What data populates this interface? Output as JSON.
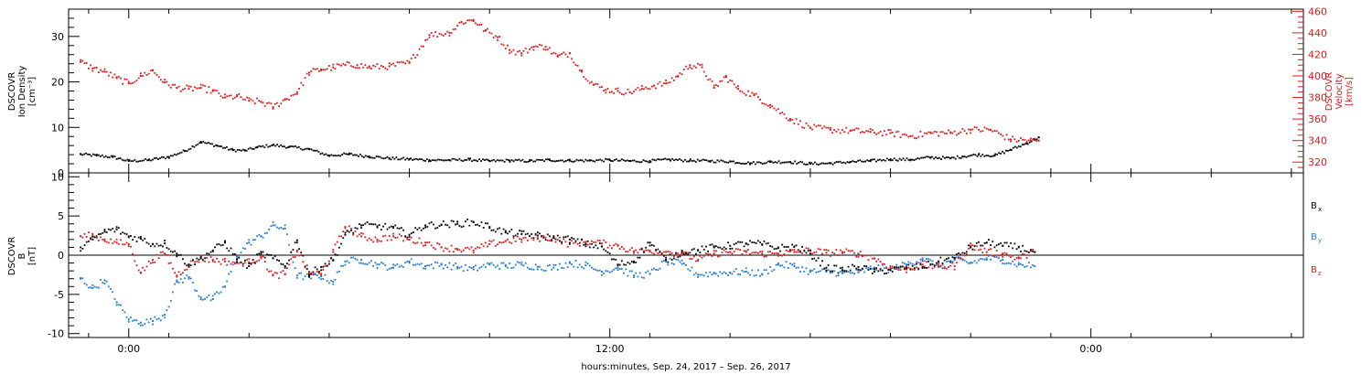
{
  "chart_data": [
    {
      "type": "scatter",
      "panel": "top",
      "ylabel_left": [
        "DSCOVR",
        "Ion Density",
        "[cm⁻³]"
      ],
      "ylabel_right": [
        "DSCOVR",
        "Velocity",
        "[km/s]"
      ],
      "ylim_left": [
        0,
        36
      ],
      "ylim_right": [
        310,
        462
      ],
      "left_ticks": [
        0,
        10,
        20,
        30
      ],
      "right_ticks": [
        320,
        340,
        360,
        380,
        400,
        420,
        440,
        460
      ],
      "series": [
        {
          "axis": "left",
          "color": "#000000",
          "x": [
            -1.2,
            -0.8,
            -0.4,
            0.0,
            0.5,
            1.0,
            1.4,
            1.8,
            2.2,
            2.6,
            2.9,
            3.2,
            3.6,
            4.0,
            4.5,
            5.0,
            5.5,
            6.0,
            6.5,
            7.0,
            7.5,
            8.0,
            8.5,
            9.0,
            9.5,
            10.0,
            10.5,
            11.0,
            11.5,
            12.0,
            12.5,
            13.0,
            13.5,
            14.0,
            14.5,
            15.0,
            15.5,
            16.0,
            16.5,
            17.0,
            17.5,
            18.0,
            18.5,
            19.0,
            19.5,
            20.0,
            20.5,
            20.8,
            21.2,
            21.6,
            22.0,
            22.4,
            22.7
          ],
          "y": [
            4.1,
            3.8,
            3.5,
            2.6,
            2.8,
            3.5,
            4.8,
            6.8,
            6.0,
            5.0,
            4.9,
            5.6,
            6.1,
            5.7,
            5.2,
            3.8,
            4.1,
            3.6,
            3.2,
            3.0,
            2.8,
            2.8,
            2.9,
            2.6,
            2.7,
            2.6,
            2.8,
            2.7,
            2.7,
            2.8,
            2.6,
            2.6,
            2.9,
            2.7,
            2.6,
            2.5,
            2.1,
            2.4,
            2.4,
            2.0,
            2.1,
            2.4,
            2.6,
            3.0,
            2.9,
            3.4,
            3.2,
            3.6,
            4.0,
            3.8,
            5.1,
            6.5,
            7.8
          ]
        },
        {
          "axis": "right",
          "color": "#dd1a1a",
          "x": [
            -1.2,
            -0.9,
            -0.6,
            -0.3,
            0.0,
            0.3,
            0.6,
            0.9,
            1.2,
            1.5,
            1.8,
            2.1,
            2.4,
            2.7,
            3.0,
            3.3,
            3.6,
            3.9,
            4.2,
            4.5,
            4.8,
            5.1,
            5.4,
            5.7,
            6.0,
            6.5,
            7.0,
            7.5,
            8.0,
            8.3,
            8.6,
            8.9,
            9.2,
            9.5,
            9.8,
            10.1,
            10.4,
            10.7,
            11.0,
            11.3,
            11.6,
            11.9,
            12.2,
            12.5,
            12.8,
            13.1,
            13.4,
            13.7,
            14.0,
            14.3,
            14.6,
            14.9,
            15.2,
            15.6,
            16.0,
            16.5,
            17.0,
            17.5,
            18.0,
            18.5,
            19.0,
            19.5,
            20.0,
            20.5,
            21.0,
            21.5,
            22.0,
            22.5,
            22.7
          ],
          "y": [
            413,
            407,
            404,
            398,
            393,
            400,
            405,
            394,
            389,
            388,
            389,
            386,
            380,
            381,
            377,
            376,
            371,
            378,
            385,
            403,
            406,
            408,
            410,
            410,
            408,
            409,
            412,
            438,
            440,
            450,
            452,
            442,
            436,
            424,
            421,
            427,
            427,
            418,
            421,
            404,
            392,
            387,
            386,
            385,
            388,
            391,
            393,
            400,
            410,
            408,
            389,
            399,
            388,
            382,
            373,
            360,
            352,
            350,
            349,
            348,
            347,
            344,
            347,
            347,
            350,
            350,
            341,
            340,
            340
          ]
        }
      ]
    },
    {
      "type": "scatter",
      "panel": "bottom",
      "ylabel_left": [
        "DSCOVR",
        "B",
        "[nT]"
      ],
      "ylim": [
        -10.5,
        10.5
      ],
      "ticks": [
        -10,
        -5,
        0,
        5,
        10
      ],
      "zero_line": true,
      "legend": {
        "placement": "right",
        "entries": [
          {
            "text": "B",
            "sub": "x",
            "color": "#000000"
          },
          {
            "text": "B",
            "sub": "y",
            "color": "#1f7bd6"
          },
          {
            "text": "B",
            "sub": "z",
            "color": "#dd1a1a"
          }
        ]
      },
      "series": [
        {
          "color": "#000000",
          "x": [
            -1.2,
            -0.9,
            -0.6,
            -0.3,
            0.0,
            0.3,
            0.6,
            0.9,
            1.2,
            1.5,
            1.8,
            2.1,
            2.4,
            2.7,
            3.0,
            3.3,
            3.6,
            3.9,
            4.2,
            4.5,
            4.8,
            5.1,
            5.4,
            5.8,
            6.2,
            6.6,
            7.0,
            7.4,
            7.8,
            8.2,
            8.6,
            9.0,
            9.4,
            9.8,
            10.2,
            10.6,
            11.0,
            11.4,
            11.8,
            12.2,
            12.6,
            13.0,
            13.4,
            13.8,
            14.2,
            14.6,
            15.0,
            15.4,
            15.8,
            16.2,
            16.6,
            17.0,
            17.4,
            17.8,
            18.2,
            18.6,
            19.0,
            19.4,
            19.8,
            20.2,
            20.6,
            21.0,
            21.4,
            21.8,
            22.2,
            22.6
          ],
          "y": [
            1.0,
            2.0,
            3.0,
            3.3,
            2.4,
            2.1,
            1.4,
            1.5,
            0.2,
            -1.2,
            -0.4,
            0.6,
            1.6,
            -0.5,
            -1.4,
            0.2,
            -0.4,
            -1.4,
            1.9,
            -2.5,
            -1.5,
            -0.6,
            2.6,
            3.8,
            3.7,
            3.5,
            2.6,
            3.8,
            3.9,
            4.0,
            4.2,
            3.6,
            2.9,
            2.7,
            2.5,
            2.2,
            2.0,
            1.4,
            1.1,
            -1.2,
            -0.8,
            1.6,
            -0.6,
            0.4,
            0.6,
            1.0,
            1.2,
            1.5,
            1.4,
            0.9,
            1.1,
            0.2,
            -1.6,
            -1.9,
            -1.5,
            -2.1,
            -1.9,
            -1.6,
            -1.5,
            -0.8,
            -0.4,
            1.0,
            1.6,
            1.2,
            1.0,
            0.4
          ]
        },
        {
          "color": "#1f7bd6",
          "x": [
            -1.2,
            -0.9,
            -0.6,
            -0.3,
            0.0,
            0.3,
            0.6,
            0.9,
            1.2,
            1.5,
            1.8,
            2.1,
            2.4,
            2.7,
            3.0,
            3.3,
            3.6,
            3.9,
            4.2,
            4.5,
            4.8,
            5.1,
            5.4,
            5.8,
            6.2,
            6.6,
            7.0,
            7.4,
            7.8,
            8.2,
            8.6,
            9.0,
            9.4,
            9.8,
            10.2,
            10.6,
            11.0,
            11.4,
            11.8,
            12.2,
            12.6,
            13.0,
            13.4,
            13.8,
            14.2,
            14.6,
            15.0,
            15.4,
            15.8,
            16.2,
            16.6,
            17.0,
            17.4,
            17.8,
            18.2,
            18.6,
            19.0,
            19.4,
            19.8,
            20.2,
            20.6,
            21.0,
            21.4,
            21.8,
            22.2,
            22.6
          ],
          "y": [
            -3.0,
            -4.2,
            -3.2,
            -6.0,
            -8.2,
            -8.6,
            -8.4,
            -7.6,
            -3.4,
            -2.8,
            -5.4,
            -5.6,
            -4.0,
            -0.2,
            1.6,
            2.4,
            3.8,
            3.4,
            -2.6,
            -2.8,
            -2.7,
            -3.4,
            -0.8,
            -0.6,
            -1.2,
            -1.6,
            -0.8,
            -1.4,
            -1.2,
            -1.5,
            -1.8,
            -1.2,
            -1.4,
            -1.2,
            -1.5,
            -1.6,
            -1.0,
            -1.3,
            -2.1,
            -1.6,
            -2.6,
            -2.4,
            -0.8,
            -1.1,
            -2.5,
            -2.3,
            -2.2,
            -2.1,
            -2.4,
            -1.2,
            -1.4,
            -2.1,
            -2.1,
            -2.3,
            -2.2,
            -1.6,
            -1.8,
            -1.2,
            -0.4,
            -1.4,
            -0.6,
            -1.0,
            -0.4,
            -0.6,
            -1.2,
            -1.4
          ]
        },
        {
          "color": "#dd1a1a",
          "x": [
            -1.2,
            -0.9,
            -0.6,
            -0.3,
            0.0,
            0.3,
            0.6,
            0.9,
            1.2,
            1.5,
            1.8,
            2.1,
            2.4,
            2.7,
            3.0,
            3.3,
            3.6,
            3.9,
            4.2,
            4.5,
            4.8,
            5.1,
            5.4,
            5.8,
            6.2,
            6.6,
            7.0,
            7.4,
            7.8,
            8.2,
            8.6,
            9.0,
            9.4,
            9.8,
            10.2,
            10.6,
            11.0,
            11.4,
            11.8,
            12.2,
            12.6,
            13.0,
            13.4,
            13.8,
            14.2,
            14.6,
            15.0,
            15.4,
            15.8,
            16.2,
            16.6,
            17.0,
            17.4,
            17.8,
            18.2,
            18.6,
            19.0,
            19.4,
            19.8,
            20.2,
            20.6,
            21.0,
            21.4,
            21.8,
            22.2,
            22.6
          ],
          "y": [
            2.4,
            2.5,
            2.0,
            1.6,
            1.4,
            -2.2,
            -0.6,
            0.2,
            -2.6,
            -1.2,
            -0.4,
            -0.6,
            -0.8,
            -1.0,
            -0.9,
            -0.2,
            -2.6,
            -2.4,
            0.6,
            -2.2,
            -2.5,
            0.4,
            3.6,
            2.4,
            2.0,
            2.4,
            2.0,
            1.6,
            1.0,
            0.8,
            0.6,
            1.4,
            1.8,
            2.0,
            2.2,
            2.2,
            1.4,
            1.7,
            1.5,
            1.2,
            0.5,
            0.6,
            0.4,
            0.2,
            -0.6,
            0.2,
            0.4,
            0.4,
            0.2,
            0.2,
            0.4,
            0.6,
            0.3,
            0.4,
            0.2,
            -0.4,
            -1.6,
            -1.8,
            -1.2,
            -1.5,
            -1.4,
            1.2,
            0.4,
            0.2,
            -0.4,
            0.4
          ]
        }
      ]
    }
  ],
  "x_axis": {
    "range_hours": [
      -1.5,
      29.3
    ],
    "major_ticks": [
      0,
      12,
      24
    ],
    "major_labels": [
      "0:00",
      "12:00",
      "0:00"
    ],
    "minor_every_hours": 2,
    "title": "hours:minutes, Sep. 24, 2017 – Sep. 26, 2017"
  }
}
